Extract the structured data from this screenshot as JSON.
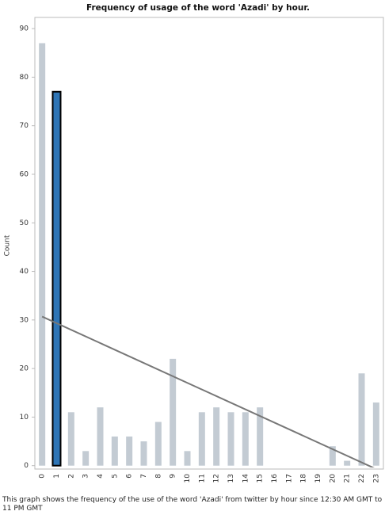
{
  "chart_data": {
    "type": "bar",
    "title": "Frequency of usage of the word 'Azadi' by hour.",
    "y_label": "Count",
    "categories": [
      "0",
      "1",
      "2",
      "3",
      "4",
      "5",
      "6",
      "7",
      "8",
      "9",
      "10",
      "11",
      "12",
      "13",
      "14",
      "15",
      "16",
      "17",
      "18",
      "19",
      "20",
      "21",
      "22",
      "23"
    ],
    "values": [
      87,
      77,
      11,
      3,
      12,
      6,
      6,
      5,
      9,
      22,
      3,
      11,
      12,
      11,
      11,
      12,
      0,
      0,
      0,
      0,
      4,
      1,
      19,
      13
    ],
    "color": "#c3cbd3",
    "highlight_color": "#2e75b6",
    "highlight_index": 1,
    "trend": {
      "x": [
        0,
        23
      ],
      "values": [
        30.7,
        -0.7
      ],
      "color": "#777777"
    },
    "ylim": [
      -0.7,
      92.3
    ],
    "yticks": [
      0,
      10,
      20,
      30,
      40,
      50,
      60,
      70,
      80,
      90
    ],
    "grid": false,
    "note": "This graph shows the frequency of the use of the word 'Azadi' from twitter by hour since 12:30 AM GMT to 11 PM GMT"
  }
}
